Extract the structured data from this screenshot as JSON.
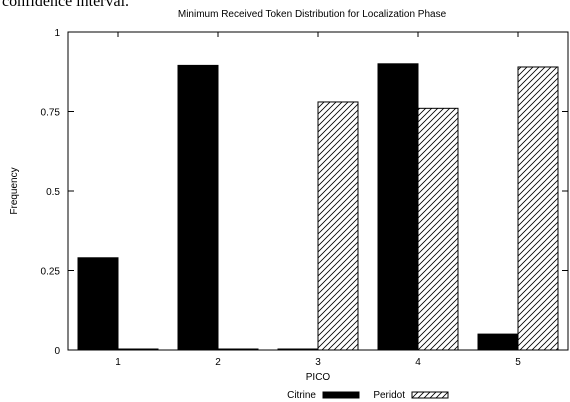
{
  "page": {
    "cutoff_text": "confidence interval."
  },
  "chart_data": {
    "type": "bar",
    "title": "Minimum Received Token Distribution for Localization Phase",
    "xlabel": "PICO",
    "ylabel": "Frequency",
    "categories": [
      "1",
      "2",
      "3",
      "4",
      "5"
    ],
    "ylim": [
      0,
      1
    ],
    "yticks": [
      0,
      0.25,
      0.5,
      0.75,
      1
    ],
    "ytick_labels": [
      "0",
      "0.25",
      "0.5",
      "0.75",
      "1"
    ],
    "grid": false,
    "legend_position": "bottom",
    "series": [
      {
        "name": "Citrine",
        "values": [
          0.29,
          0.895,
          0.0,
          0.9,
          0.05
        ],
        "fill": "solid",
        "color": "#000000"
      },
      {
        "name": "Peridot",
        "values": [
          0.0,
          0.0,
          0.78,
          0.76,
          0.89
        ],
        "fill": "hatch",
        "color": "#000000"
      }
    ]
  }
}
